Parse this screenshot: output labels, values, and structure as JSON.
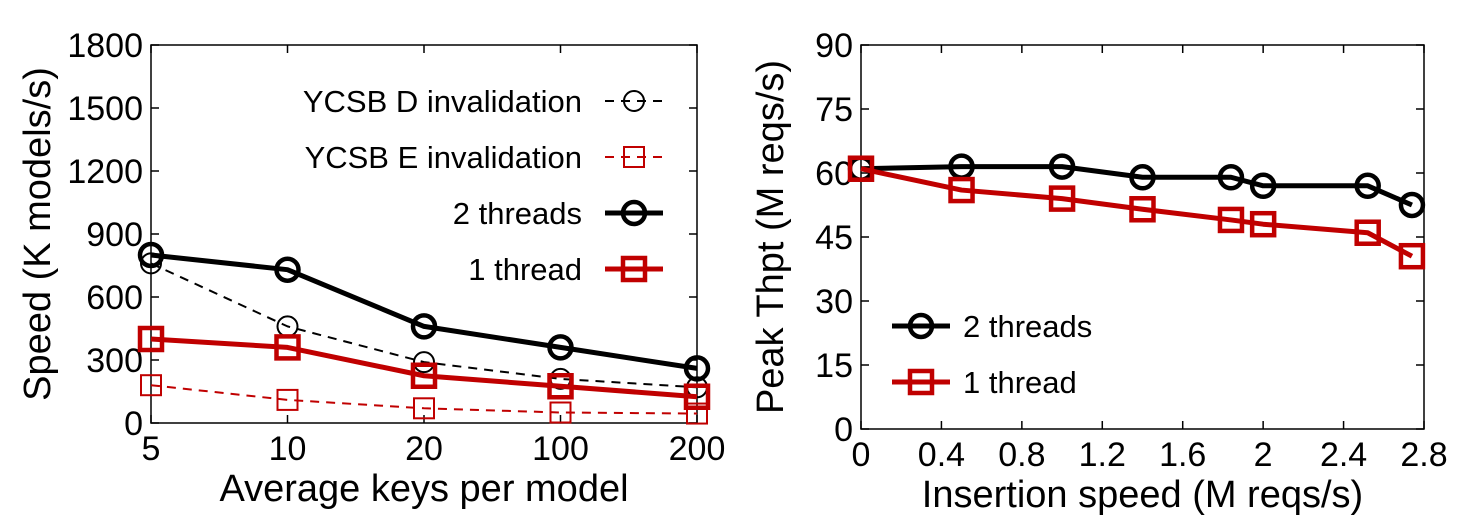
{
  "colors": {
    "black": "#000000",
    "red": "#c00000"
  },
  "chart_data": [
    {
      "type": "line",
      "xlabel": "Average keys per model",
      "ylabel": "Speed (K models/s)",
      "categories": [
        "5",
        "10",
        "20",
        "100",
        "200"
      ],
      "yticks": [
        "0",
        "300",
        "600",
        "900",
        "1200",
        "1500",
        "1800"
      ],
      "ylim": [
        0,
        1800
      ],
      "legend_position": "top-right",
      "series": [
        {
          "name": "YCSB D invalidation",
          "color": "#000000",
          "marker": "circle",
          "style": "dashed",
          "values": [
            760,
            460,
            290,
            210,
            170
          ]
        },
        {
          "name": "YCSB E invalidation",
          "color": "#c00000",
          "marker": "square",
          "style": "dashed",
          "values": [
            180,
            110,
            70,
            50,
            45
          ]
        },
        {
          "name": "2 threads",
          "color": "#000000",
          "marker": "circle",
          "style": "solid",
          "values": [
            800,
            730,
            460,
            360,
            260
          ]
        },
        {
          "name": "1 thread",
          "color": "#c00000",
          "marker": "square",
          "style": "solid",
          "values": [
            400,
            360,
            225,
            175,
            125
          ]
        }
      ]
    },
    {
      "type": "line",
      "xlabel": "Insertion speed (M reqs/s)",
      "ylabel": "Peak Thpt (M reqs/s)",
      "xticks": [
        "0",
        "0.4",
        "0.8",
        "1.2",
        "1.6",
        "2",
        "2.4",
        "2.8"
      ],
      "xlim": [
        0,
        2.8
      ],
      "yticks": [
        "0",
        "15",
        "30",
        "45",
        "60",
        "75",
        "90"
      ],
      "ylim": [
        0,
        90
      ],
      "legend_position": "bottom-left",
      "series": [
        {
          "name": "2 threads",
          "color": "#000000",
          "marker": "circle",
          "style": "solid",
          "x": [
            0,
            0.5,
            1.0,
            1.4,
            1.84,
            2.0,
            2.52,
            2.74
          ],
          "values": [
            61,
            61.5,
            61.5,
            59,
            59,
            57,
            57,
            52.5
          ]
        },
        {
          "name": "1 thread",
          "color": "#c00000",
          "marker": "square",
          "style": "solid",
          "x": [
            0,
            0.5,
            1.0,
            1.4,
            1.84,
            2.0,
            2.52,
            2.74
          ],
          "values": [
            61,
            56,
            54,
            51.5,
            49,
            48,
            46,
            40.5
          ]
        }
      ]
    }
  ]
}
